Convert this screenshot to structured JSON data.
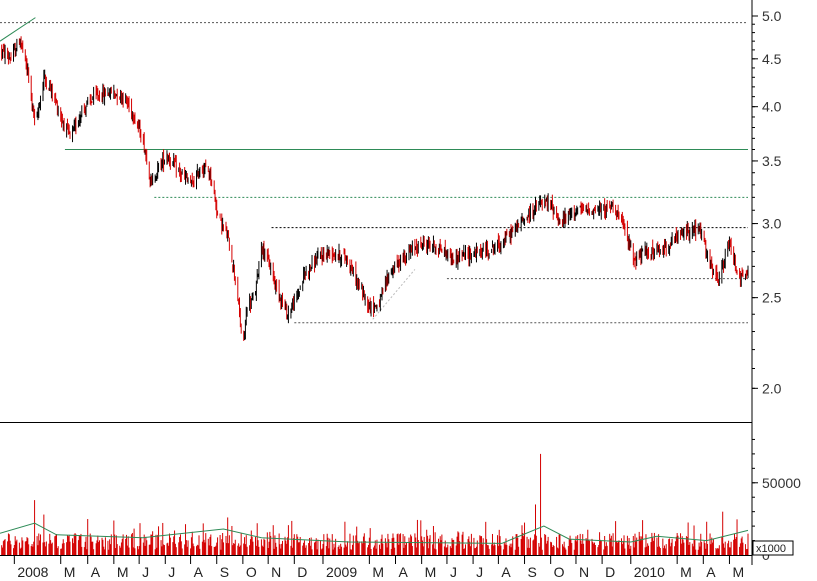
{
  "chart_data": [
    {
      "type": "candlestick",
      "panel": "price",
      "y_scale": "log",
      "ylim": [
        1.85,
        5.15
      ],
      "y_ticks": [
        "2.0",
        "2.5",
        "3.0",
        "3.5",
        "4.0",
        "4.5",
        "5.0"
      ],
      "y_tick_values": [
        2.0,
        2.5,
        3.0,
        3.5,
        4.0,
        4.5,
        5.0
      ],
      "x_start": "2007-12-15",
      "x_end": "2010-05-20",
      "x_ticks": [
        {
          "label": "2008",
          "date": "2008-01-01"
        },
        {
          "label": "M",
          "date": "2008-02-25"
        },
        {
          "label": "A",
          "date": "2008-03-28"
        },
        {
          "label": "M",
          "date": "2008-04-28"
        },
        {
          "label": "J",
          "date": "2008-05-28"
        },
        {
          "label": "J",
          "date": "2008-06-28"
        },
        {
          "label": "A",
          "date": "2008-07-28"
        },
        {
          "label": "S",
          "date": "2008-08-28"
        },
        {
          "label": "O",
          "date": "2008-09-28"
        },
        {
          "label": "N",
          "date": "2008-10-28"
        },
        {
          "label": "D",
          "date": "2008-11-28"
        },
        {
          "label": "2009",
          "date": "2009-01-01"
        },
        {
          "label": "M",
          "date": "2009-02-25"
        },
        {
          "label": "A",
          "date": "2009-03-28"
        },
        {
          "label": "M",
          "date": "2009-04-28"
        },
        {
          "label": "J",
          "date": "2009-05-28"
        },
        {
          "label": "J",
          "date": "2009-06-28"
        },
        {
          "label": "A",
          "date": "2009-07-28"
        },
        {
          "label": "S",
          "date": "2009-08-28"
        },
        {
          "label": "O",
          "date": "2009-09-28"
        },
        {
          "label": "N",
          "date": "2009-10-28"
        },
        {
          "label": "D",
          "date": "2009-11-28"
        },
        {
          "label": "2010",
          "date": "2010-01-01"
        },
        {
          "label": "M",
          "date": "2010-02-25"
        },
        {
          "label": "A",
          "date": "2010-03-28"
        },
        {
          "label": "M",
          "date": "2010-04-28"
        }
      ],
      "colors": {
        "up": "#000000",
        "down": "#d40000"
      },
      "price_path": [
        [
          "2007-12-15",
          4.6
        ],
        [
          "2007-12-28",
          4.5
        ],
        [
          "2008-01-08",
          4.72
        ],
        [
          "2008-01-18",
          4.3
        ],
        [
          "2008-01-26",
          3.8
        ],
        [
          "2008-02-05",
          4.3
        ],
        [
          "2008-02-15",
          4.15
        ],
        [
          "2008-02-25",
          3.9
        ],
        [
          "2008-03-08",
          3.7
        ],
        [
          "2008-03-20",
          3.95
        ],
        [
          "2008-04-05",
          4.1
        ],
        [
          "2008-04-25",
          4.15
        ],
        [
          "2008-05-10",
          4.1
        ],
        [
          "2008-05-20",
          3.95
        ],
        [
          "2008-06-01",
          3.7
        ],
        [
          "2008-06-12",
          3.3
        ],
        [
          "2008-06-20",
          3.45
        ],
        [
          "2008-06-30",
          3.55
        ],
        [
          "2008-07-15",
          3.4
        ],
        [
          "2008-07-30",
          3.3
        ],
        [
          "2008-08-10",
          3.45
        ],
        [
          "2008-08-20",
          3.4
        ],
        [
          "2008-08-30",
          3.05
        ],
        [
          "2008-09-10",
          2.9
        ],
        [
          "2008-09-20",
          2.6
        ],
        [
          "2008-09-28",
          2.2
        ],
        [
          "2008-10-03",
          2.45
        ],
        [
          "2008-10-12",
          2.5
        ],
        [
          "2008-10-20",
          2.85
        ],
        [
          "2008-10-30",
          2.7
        ],
        [
          "2008-11-08",
          2.55
        ],
        [
          "2008-11-20",
          2.4
        ],
        [
          "2008-12-01",
          2.5
        ],
        [
          "2008-12-10",
          2.65
        ],
        [
          "2008-12-25",
          2.75
        ],
        [
          "2009-01-10",
          2.8
        ],
        [
          "2009-01-30",
          2.75
        ],
        [
          "2009-02-10",
          2.6
        ],
        [
          "2009-02-25",
          2.45
        ],
        [
          "2009-03-08",
          2.45
        ],
        [
          "2009-03-20",
          2.65
        ],
        [
          "2009-04-05",
          2.75
        ],
        [
          "2009-04-25",
          2.85
        ],
        [
          "2009-05-10",
          2.85
        ],
        [
          "2009-05-25",
          2.8
        ],
        [
          "2009-06-05",
          2.75
        ],
        [
          "2009-06-20",
          2.78
        ],
        [
          "2009-07-10",
          2.8
        ],
        [
          "2009-07-30",
          2.85
        ],
        [
          "2009-08-15",
          2.95
        ],
        [
          "2009-08-30",
          3.05
        ],
        [
          "2009-09-15",
          3.15
        ],
        [
          "2009-09-28",
          3.15
        ],
        [
          "2009-10-10",
          3.0
        ],
        [
          "2009-10-25",
          3.1
        ],
        [
          "2009-11-10",
          3.1
        ],
        [
          "2009-11-30",
          3.1
        ],
        [
          "2009-12-12",
          3.15
        ],
        [
          "2009-12-25",
          2.95
        ],
        [
          "2010-01-05",
          2.75
        ],
        [
          "2010-01-20",
          2.8
        ],
        [
          "2010-02-05",
          2.8
        ],
        [
          "2010-02-25",
          2.9
        ],
        [
          "2010-03-10",
          2.95
        ],
        [
          "2010-03-25",
          2.95
        ],
        [
          "2010-04-05",
          2.7
        ],
        [
          "2010-04-15",
          2.6
        ],
        [
          "2010-04-28",
          2.85
        ],
        [
          "2010-05-10",
          2.62
        ],
        [
          "2010-05-20",
          2.65
        ]
      ],
      "horizontal_lines": [
        {
          "value": 4.92,
          "style": "dotted",
          "color": "#555555",
          "x_from": "2007-12-15"
        },
        {
          "value": 3.6,
          "style": "solid",
          "color": "#2e8b57",
          "x_from": "2008-03-01"
        },
        {
          "value": 3.2,
          "style": "dotted",
          "color": "#2e8b57",
          "x_from": "2008-06-15"
        },
        {
          "value": 2.97,
          "style": "dotted",
          "color": "#000000",
          "x_from": "2008-11-01"
        },
        {
          "value": 2.62,
          "style": "dotted",
          "color": "#555555",
          "x_from": "2009-05-28"
        },
        {
          "value": 2.35,
          "style": "dotted",
          "color": "#555555",
          "x_from": "2008-11-28"
        }
      ],
      "trend_lines": [
        {
          "from": [
            "2007-12-15",
            4.7
          ],
          "to": [
            "2008-01-26",
            4.98
          ],
          "color": "#2e8b57"
        },
        {
          "from": [
            "2009-03-01",
            2.37
          ],
          "to": [
            "2009-04-20",
            2.68
          ],
          "color": "#bbbbbb",
          "style": "dotted"
        }
      ]
    },
    {
      "type": "bar",
      "panel": "volume",
      "ylim": [
        0,
        90000
      ],
      "y_ticks": [
        "0",
        "50000"
      ],
      "y_tick_values": [
        0,
        50000
      ],
      "unit_label": "x1000",
      "colors": {
        "bar": "#d40000",
        "average": "#2e8b57"
      },
      "base_level": 9000,
      "volume_spikes": [
        {
          "date": "2008-01-25",
          "value": 38000
        },
        {
          "date": "2008-02-05",
          "value": 28000
        },
        {
          "date": "2008-08-30",
          "value": 42000
        },
        {
          "date": "2008-09-10",
          "value": 26000
        },
        {
          "date": "2008-10-15",
          "value": 22000
        },
        {
          "date": "2009-09-10",
          "value": 35000
        },
        {
          "date": "2009-09-16",
          "value": 70000
        },
        {
          "date": "2009-09-20",
          "value": 25000
        },
        {
          "date": "2010-01-10",
          "value": 22000
        },
        {
          "date": "2010-04-20",
          "value": 30000
        },
        {
          "date": "2010-05-15",
          "value": 34000
        }
      ],
      "volume_average_path": [
        [
          "2007-12-15",
          15000
        ],
        [
          "2008-01-25",
          22000
        ],
        [
          "2008-02-20",
          14000
        ],
        [
          "2008-06-01",
          12000
        ],
        [
          "2008-09-05",
          18000
        ],
        [
          "2008-10-20",
          12000
        ],
        [
          "2009-02-01",
          9000
        ],
        [
          "2009-08-01",
          8000
        ],
        [
          "2009-09-20",
          20000
        ],
        [
          "2009-10-20",
          11000
        ],
        [
          "2010-01-01",
          9000
        ],
        [
          "2010-02-01",
          13000
        ],
        [
          "2010-04-01",
          10000
        ],
        [
          "2010-05-20",
          17000
        ]
      ]
    }
  ]
}
